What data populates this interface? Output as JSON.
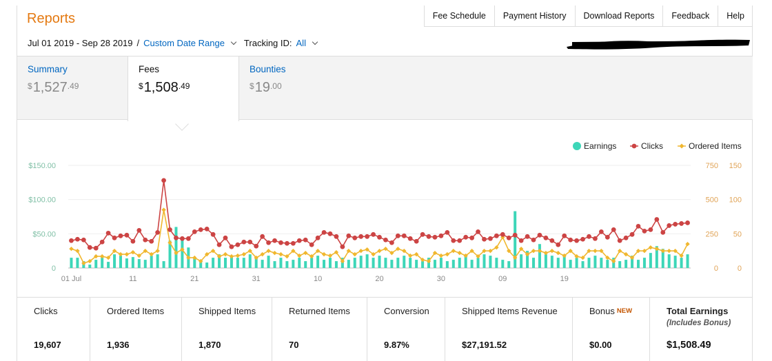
{
  "header": {
    "title": "Reports",
    "date_range": "Jul 01 2019 - Sep 28 2019",
    "separator": "/",
    "custom_range_label": "Custom Date Range",
    "tracking_label": "Tracking ID:",
    "tracking_value": "All"
  },
  "topnav": [
    "Fee Schedule",
    "Payment History",
    "Download Reports",
    "Feedback",
    "Help"
  ],
  "tabs": [
    {
      "label": "Summary",
      "currency": "$",
      "whole": "1,527",
      "cents": ".49"
    },
    {
      "label": "Fees",
      "currency": "$",
      "whole": "1,508",
      "cents": ".49"
    },
    {
      "label": "Bounties",
      "currency": "$",
      "whole": "19",
      "cents": ".00"
    }
  ],
  "active_tab": "Fees",
  "colors": {
    "earnings": "#3dd6b8",
    "clicks": "#cc4444",
    "ordered": "#f0b72f",
    "left_axis": "#7fbfa5",
    "right_axis": "#e0a356",
    "link": "#0066c0",
    "title": "#e47911"
  },
  "chart_data": {
    "type": "bar",
    "legend": [
      "Earnings",
      "Clicks",
      "Ordered Items"
    ],
    "legend_position": "top-right",
    "x_ticks": [
      "01 Jul",
      "11",
      "21",
      "31",
      "10",
      "20",
      "30",
      "09",
      "19"
    ],
    "left_axis": {
      "ticks": [
        "$150.00",
        "$100.00",
        "$50.00",
        "0"
      ],
      "range": [
        0,
        150
      ]
    },
    "right_axis_clicks": {
      "ticks": [
        "750",
        "500",
        "250",
        "0"
      ],
      "range": [
        0,
        750
      ]
    },
    "right_axis_ordered": {
      "ticks": [
        "150",
        "100",
        "50",
        "0"
      ],
      "range": [
        0,
        150
      ]
    },
    "series": [
      {
        "name": "Earnings",
        "type": "bar",
        "values": [
          15,
          15,
          10,
          5,
          12,
          18,
          9,
          20,
          18,
          14,
          16,
          13,
          12,
          18,
          20,
          10,
          40,
          60,
          40,
          30,
          15,
          10,
          8,
          15,
          20,
          15,
          18,
          15,
          15,
          20,
          15,
          12,
          18,
          10,
          15,
          10,
          12,
          15,
          10,
          15,
          18,
          12,
          15,
          10,
          15,
          12,
          15,
          18,
          20,
          15,
          18,
          15,
          12,
          15,
          18,
          15,
          12,
          10,
          15,
          12,
          15,
          10,
          12,
          15,
          18,
          12,
          15,
          20,
          18,
          15,
          12,
          10,
          83,
          20,
          25,
          15,
          35,
          20,
          18,
          15,
          18,
          12,
          15,
          10,
          15,
          18,
          15,
          12,
          15,
          10,
          12,
          18,
          12,
          15,
          22,
          32,
          28,
          20,
          18,
          15,
          20
        ]
      },
      {
        "name": "Clicks",
        "type": "line",
        "values": [
          200,
          210,
          205,
          150,
          145,
          190,
          255,
          220,
          235,
          240,
          195,
          275,
          205,
          195,
          260,
          640,
          280,
          220,
          215,
          215,
          265,
          280,
          285,
          245,
          170,
          220,
          155,
          170,
          190,
          190,
          160,
          230,
          185,
          200,
          185,
          180,
          180,
          200,
          205,
          170,
          220,
          260,
          250,
          230,
          155,
          235,
          220,
          230,
          230,
          245,
          225,
          205,
          185,
          235,
          235,
          215,
          195,
          245,
          230,
          225,
          235,
          260,
          200,
          200,
          225,
          220,
          265,
          210,
          215,
          235,
          245,
          220,
          240,
          200,
          230,
          205,
          240,
          220,
          200,
          170,
          235,
          205,
          200,
          210,
          230,
          215,
          265,
          225,
          280,
          200,
          220,
          245,
          305,
          270,
          280,
          355,
          260,
          310,
          320,
          325,
          330
        ]
      },
      {
        "name": "Ordered Items",
        "type": "line",
        "values": [
          28,
          25,
          7,
          10,
          17,
          17,
          15,
          25,
          20,
          20,
          23,
          18,
          25,
          20,
          25,
          85,
          37,
          22,
          27,
          15,
          15,
          10,
          20,
          25,
          17,
          20,
          17,
          18,
          20,
          25,
          15,
          20,
          25,
          22,
          20,
          17,
          25,
          18,
          22,
          17,
          25,
          20,
          18,
          23,
          10,
          25,
          20,
          25,
          27,
          20,
          25,
          28,
          22,
          28,
          25,
          18,
          20,
          12,
          10,
          22,
          18,
          20,
          25,
          22,
          18,
          25,
          17,
          25,
          25,
          30,
          45,
          25,
          15,
          28,
          20,
          25,
          25,
          22,
          25,
          22,
          18,
          25,
          17,
          15,
          25,
          25,
          25,
          15,
          10,
          25,
          20,
          15,
          25,
          25,
          30,
          28,
          25,
          25,
          25,
          18,
          35
        ]
      }
    ]
  },
  "stats": [
    {
      "label": "Clicks",
      "value": "19,607"
    },
    {
      "label": "Ordered Items",
      "value": "1,936"
    },
    {
      "label": "Shipped Items",
      "value": "1,870"
    },
    {
      "label": "Returned Items",
      "value": "70"
    },
    {
      "label": "Conversion",
      "value": "9.87%"
    },
    {
      "label": "Shipped Items Revenue",
      "value": "$27,191.52"
    },
    {
      "label": "Bonus",
      "badge": "NEW",
      "value": "$0.00"
    },
    {
      "label": "Total Earnings",
      "sublabel": "(Includes Bonus)",
      "value": "$1,508.49"
    }
  ]
}
